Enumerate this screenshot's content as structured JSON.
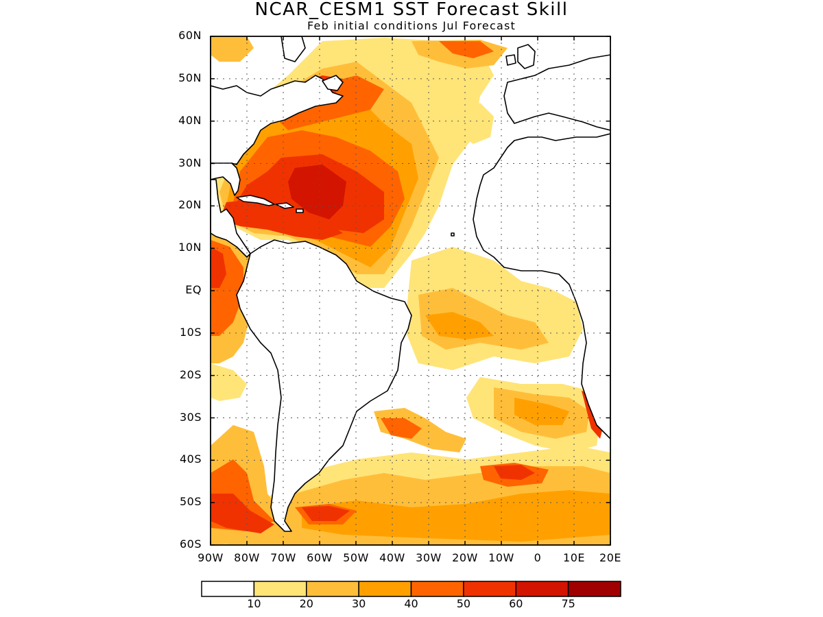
{
  "title": "NCAR_CESM1 SST Forecast Skill",
  "subtitle": "Feb initial conditions  Jul Forecast",
  "lat_labels": [
    "60N",
    "50N",
    "40N",
    "30N",
    "20N",
    "10N",
    "EQ",
    "10S",
    "20S",
    "30S",
    "40S",
    "50S",
    "60S"
  ],
  "lon_labels": [
    "90W",
    "80W",
    "70W",
    "60W",
    "50W",
    "40W",
    "30W",
    "20W",
    "10W",
    "0",
    "10E",
    "20E"
  ],
  "colorbar": {
    "colors": [
      "#ffffff",
      "#ffe478",
      "#ffbe3a",
      "#ffa000",
      "#ff6400",
      "#f03200",
      "#d21400",
      "#a00000"
    ],
    "labels": [
      "10",
      "20",
      "30",
      "40",
      "50",
      "60",
      "75"
    ]
  },
  "map": {
    "lon_range": [
      -90,
      20
    ],
    "lat_range": [
      -60,
      60
    ],
    "grid": "dotted",
    "variable": "SST forecast skill"
  }
}
